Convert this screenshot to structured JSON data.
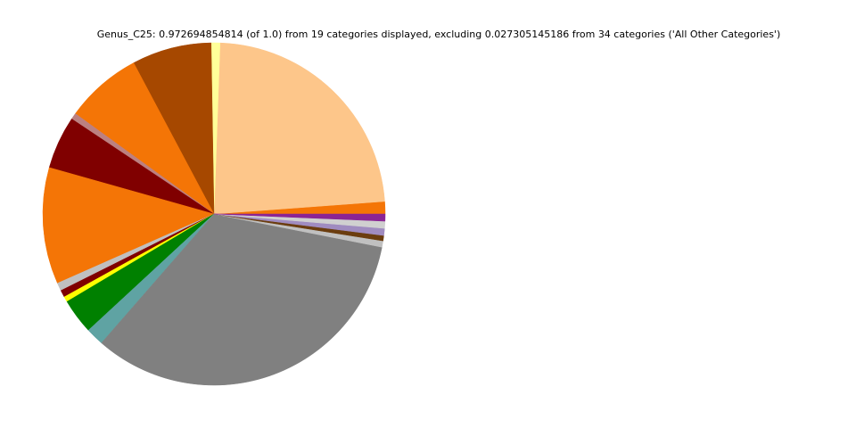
{
  "chart_data": {
    "type": "pie",
    "title": "Genus_C25: 0.972694854814 (of 1.0) from 19 categories displayed, excluding 0.027305145186 from 34 categories ('All Other Categories')",
    "values": [
      0.0114,
      0.2262,
      0.0081,
      0.073,
      0.0705,
      0.0058,
      0.0486,
      0.107,
      0.0073,
      0.0065,
      0.0049,
      0.0324,
      0.0165,
      0.3239,
      0.0058,
      0.0049,
      0.0065,
      0.0065,
      0.0065
    ],
    "colors": [
      "#f47506",
      "#fdc68a",
      "#ffff99",
      "#a64800",
      "#f47506",
      "#bc8080",
      "#800000",
      "#f47506",
      "#c0c0c0",
      "#800000",
      "#ffff00",
      "#008000",
      "#5fa3a3",
      "#808080",
      "#c0c0c0",
      "#6b3d0f",
      "#a08cc0",
      "#d0d0d0",
      "#8b2494"
    ]
  }
}
